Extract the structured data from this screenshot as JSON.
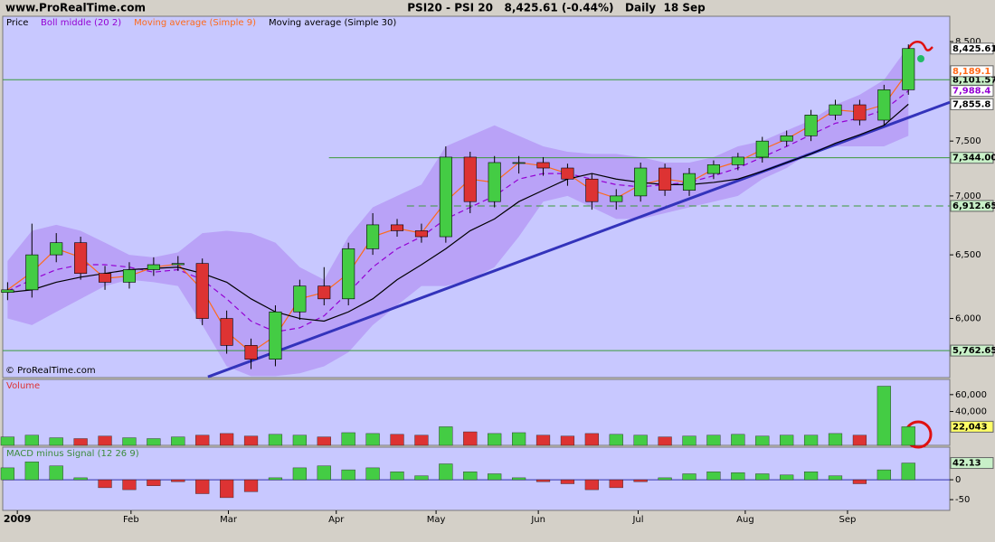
{
  "site": "www.ProRealTime.com",
  "copyright": "© ProRealTime.com",
  "chart_data": [
    {
      "type": "candlestick",
      "title": "PSI20 - PSI 20   8,425.61 (-0.44%)   Daily  18 Sep",
      "price_name": "Price",
      "log": true,
      "ylim": [
        5570,
        8775
      ],
      "xlim": [
        -0.2,
        38.7
      ],
      "yticks": [
        {
          "value": 6000,
          "label": "6,000"
        },
        {
          "value": 6500,
          "label": "6,500"
        },
        {
          "value": 7000,
          "label": "7,000"
        },
        {
          "value": 7500,
          "label": "7,500"
        },
        {
          "value": 8500,
          "label": "8,500"
        }
      ],
      "open": [
        6200,
        6220,
        6500,
        6600,
        6350,
        6280,
        6380,
        6420,
        6430,
        6000,
        5800,
        5700,
        6050,
        6250,
        6150,
        6550,
        6750,
        6700,
        6650,
        7350,
        6950,
        7300,
        7300,
        7250,
        7150,
        6950,
        7000,
        7250,
        7050,
        7200,
        7280,
        7350,
        7500,
        7550,
        7750,
        7850,
        7700,
        8000
      ],
      "high": [
        6280,
        6760,
        6680,
        6650,
        6410,
        6440,
        6480,
        6490,
        6470,
        6060,
        5850,
        6100,
        6300,
        6400,
        6600,
        6850,
        6800,
        6760,
        7450,
        7400,
        7360,
        7360,
        7350,
        7290,
        7200,
        7060,
        7300,
        7290,
        7250,
        7320,
        7390,
        7540,
        7600,
        7800,
        7900,
        7900,
        8050,
        8470
      ],
      "low": [
        6140,
        6160,
        6440,
        6300,
        6220,
        6230,
        6330,
        6370,
        5950,
        5740,
        5630,
        5650,
        5990,
        6100,
        6100,
        6500,
        6650,
        6600,
        6600,
        6850,
        6900,
        7200,
        7180,
        7090,
        6880,
        6880,
        6950,
        7000,
        7000,
        7150,
        7230,
        7300,
        7450,
        7500,
        7700,
        7650,
        7650,
        7950
      ],
      "close": [
        6220,
        6500,
        6600,
        6350,
        6280,
        6380,
        6420,
        6430,
        6000,
        5800,
        5700,
        6050,
        6250,
        6150,
        6550,
        6750,
        6700,
        6650,
        7350,
        6950,
        7300,
        7300,
        7250,
        7150,
        6950,
        7000,
        7250,
        7050,
        7200,
        7280,
        7350,
        7500,
        7550,
        7750,
        7850,
        7700,
        8000,
        8425.61
      ],
      "close_label": "8,425.61",
      "up_color": "#44cc44",
      "down_color": "#dd3333",
      "bands": {
        "color": "#b9a2f7",
        "upper": [
          6450,
          6700,
          6750,
          6700,
          6600,
          6500,
          6480,
          6520,
          6680,
          6700,
          6680,
          6600,
          6400,
          6300,
          6650,
          6900,
          7000,
          7100,
          7450,
          7550,
          7650,
          7550,
          7450,
          7400,
          7380,
          7380,
          7350,
          7300,
          7300,
          7350,
          7450,
          7500,
          7600,
          7700,
          7850,
          7950,
          8100,
          8450
        ],
        "lower": [
          6000,
          5950,
          6050,
          6150,
          6250,
          6300,
          6280,
          6250,
          5950,
          5650,
          5580,
          5580,
          5600,
          5650,
          5750,
          5950,
          6100,
          6250,
          6250,
          6300,
          6400,
          6650,
          6950,
          7000,
          6900,
          6800,
          6800,
          6850,
          6900,
          6950,
          7000,
          7150,
          7250,
          7400,
          7450,
          7450,
          7450,
          7550
        ]
      },
      "series": [
        {
          "name": "Boll middle (20 2)",
          "color": "#9400d3",
          "dashed": true,
          "last_label": "7,988.4",
          "values": [
            6210,
            6300,
            6380,
            6420,
            6420,
            6400,
            6360,
            6380,
            6300,
            6150,
            5980,
            5900,
            5930,
            6020,
            6200,
            6400,
            6550,
            6650,
            6800,
            6900,
            7000,
            7150,
            7200,
            7200,
            7150,
            7100,
            7080,
            7100,
            7120,
            7180,
            7250,
            7350,
            7450,
            7560,
            7670,
            7720,
            7800,
            7988.4
          ]
        },
        {
          "name": "Moving average (Simple 9)",
          "color": "#ff6a1a",
          "dashed": false,
          "last_label": "8,189.1",
          "values": [
            6220,
            6360,
            6550,
            6480,
            6310,
            6330,
            6400,
            6425,
            6220,
            5900,
            5750,
            5870,
            6150,
            6200,
            6350,
            6650,
            6720,
            6680,
            6950,
            7150,
            7120,
            7300,
            7270,
            7200,
            7050,
            6980,
            7100,
            7150,
            7120,
            7240,
            7310,
            7420,
            7520,
            7650,
            7800,
            7780,
            7850,
            8189.1
          ]
        },
        {
          "name": "Moving average (Simple 30)",
          "color": "#000000",
          "dashed": false,
          "last_label": "7,855.8",
          "values": [
            6200,
            6220,
            6280,
            6320,
            6350,
            6380,
            6390,
            6400,
            6350,
            6280,
            6150,
            6050,
            6000,
            5980,
            6050,
            6150,
            6300,
            6420,
            6550,
            6700,
            6800,
            6950,
            7050,
            7150,
            7200,
            7150,
            7120,
            7100,
            7100,
            7120,
            7150,
            7220,
            7300,
            7380,
            7480,
            7560,
            7650,
            7855.8
          ]
        }
      ],
      "levels": [
        {
          "value": 8101.57,
          "label": "8,101.57",
          "x_from": -0.2,
          "dashed": false
        },
        {
          "value": 7344,
          "label": "7,344.00",
          "x_from": 13.2,
          "dashed": false
        },
        {
          "value": 6912.65,
          "label": "6,912.65",
          "x_from": 16.4,
          "dashed": true
        },
        {
          "value": 5762.65,
          "label": "5,762.65",
          "x_from": -0.2,
          "dashed": false
        }
      ],
      "level_color": "#3a9a3a",
      "trendline": {
        "color": "#3333bb",
        "x": [
          8.23,
          38.7
        ],
        "y": [
          5575,
          7875
        ]
      }
    },
    {
      "type": "bar",
      "title": "Volume",
      "ylim": [
        0,
        78000
      ],
      "xlim": [
        -0.2,
        38.7
      ],
      "yticks": [
        {
          "value": 40000,
          "label": "40,000"
        },
        {
          "value": 60000,
          "label": "60,000"
        }
      ],
      "values": [
        10000,
        12000,
        9000,
        8000,
        11000,
        9000,
        8000,
        10000,
        12000,
        14000,
        11000,
        13000,
        12000,
        10000,
        15000,
        14000,
        13000,
        12000,
        22000,
        16000,
        14000,
        15000,
        12000,
        11000,
        14000,
        13000,
        12000,
        10000,
        11000,
        12000,
        13000,
        11000,
        12000,
        12000,
        14000,
        12000,
        70000,
        22043
      ],
      "last_label": "22,043"
    },
    {
      "type": "bar",
      "title": "MACD minus Signal (12 26 9)",
      "ylim": [
        -77,
        82
      ],
      "xlim": [
        -0.2,
        38.7
      ],
      "yticks": [
        -50,
        0
      ],
      "values": [
        30,
        45,
        35,
        5,
        -20,
        -25,
        -15,
        -5,
        -35,
        -45,
        -30,
        5,
        30,
        35,
        25,
        30,
        20,
        10,
        40,
        20,
        15,
        5,
        -5,
        -10,
        -25,
        -20,
        -5,
        5,
        15,
        20,
        18,
        15,
        12,
        20,
        10,
        -10,
        25,
        42.13
      ],
      "xticks": [
        {
          "value": 0.4,
          "label": "2009"
        },
        {
          "value": 5.07,
          "label": "Feb"
        },
        {
          "value": 9.07,
          "label": "Mar"
        },
        {
          "value": 13.5,
          "label": "Apr"
        },
        {
          "value": 17.6,
          "label": "May"
        },
        {
          "value": 21.8,
          "label": "Jun"
        },
        {
          "value": 25.9,
          "label": "Jul"
        },
        {
          "value": 30.3,
          "label": "Aug"
        },
        {
          "value": 34.5,
          "label": "Sep"
        }
      ]
    }
  ]
}
